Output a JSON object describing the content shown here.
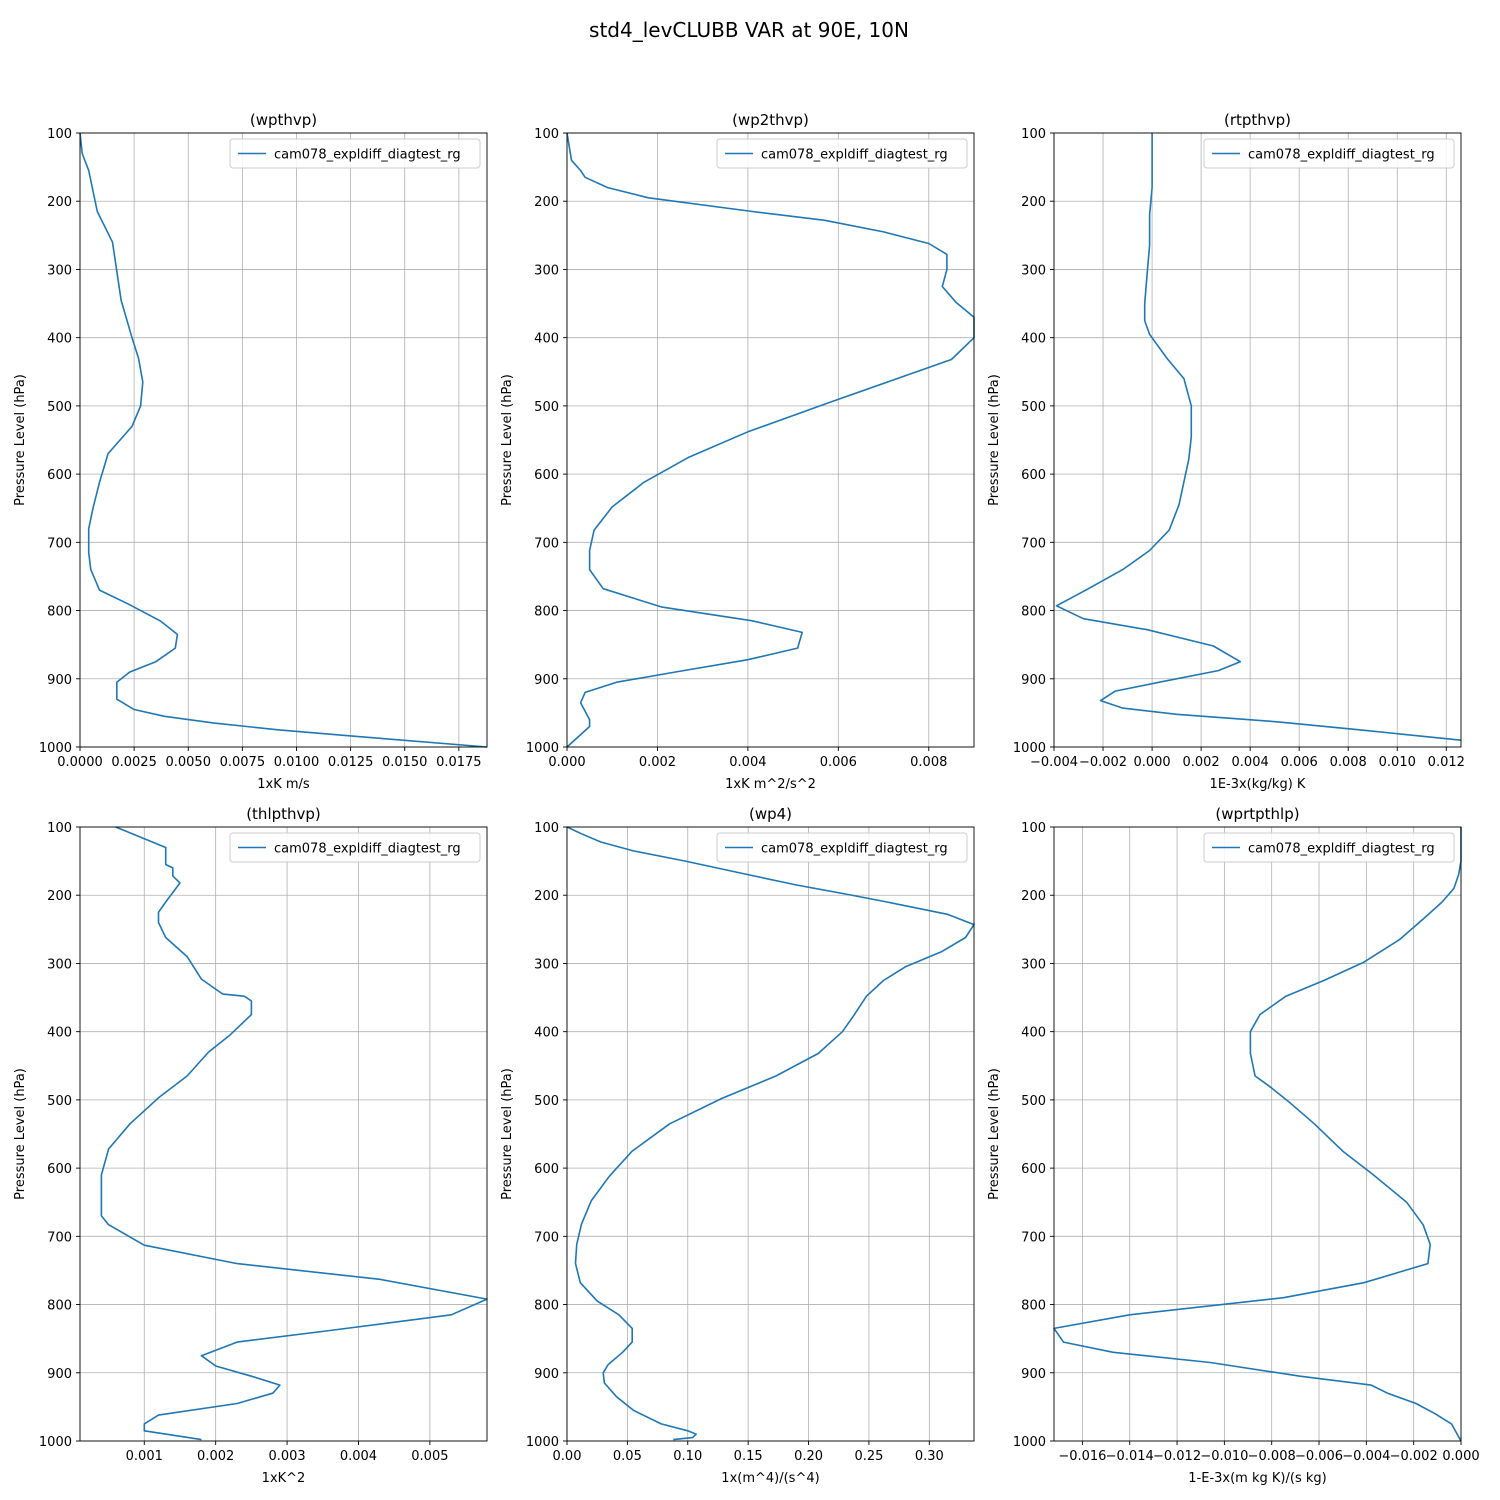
{
  "suptitle": "std4_levCLUBB VAR at 90E, 10N",
  "colors": {
    "line": "#1f77b4",
    "grid": "#b0b0b0",
    "axis": "#000000",
    "legend_border": "#cccccc"
  },
  "chart_data": [
    {
      "type": "line",
      "title": "(wpthvp)",
      "xlabel": "1xK m/s",
      "ylabel": "Pressure Level (hPa)",
      "xlim": [
        0,
        0.0188
      ],
      "ylim": [
        1000,
        100
      ],
      "xticks": [
        0,
        0.0025,
        0.005,
        0.0075,
        0.01,
        0.0125,
        0.015,
        0.0175
      ],
      "xtick_labels": [
        "0.0000",
        "0.0025",
        "0.0050",
        "0.0075",
        "0.0100",
        "0.0125",
        "0.0150",
        "0.0175"
      ],
      "yticks": [
        100,
        200,
        300,
        400,
        500,
        600,
        700,
        800,
        900,
        1000
      ],
      "ytick_labels": [
        "100",
        "200",
        "300",
        "400",
        "500",
        "600",
        "700",
        "800",
        "900",
        "1000"
      ],
      "grid": true,
      "legend_position": "upper right",
      "series": [
        {
          "name": "cam078_expldiff_diagtest_rg",
          "x": [
            0,
            0.0001,
            0.0004,
            0.0006,
            0.0008,
            0.0015,
            0.0019,
            0.0024,
            0.0027,
            0.0029,
            0.0028,
            0.0024,
            0.0013,
            0.0009,
            0.0006,
            0.0004,
            0.0004,
            0.0005,
            0.0009,
            0.0022,
            0.0037,
            0.0045,
            0.0044,
            0.0035,
            0.0023,
            0.0017,
            0.0017,
            0.0025,
            0.0039,
            0.0062,
            0.0092,
            0.013,
            0.0188
          ],
          "y": [
            100,
            130,
            155,
            185,
            215,
            260,
            345,
            400,
            430,
            465,
            500,
            530,
            570,
            612,
            650,
            680,
            715,
            740,
            770,
            790,
            815,
            835,
            855,
            875,
            890,
            905,
            930,
            945,
            955,
            965,
            975,
            985,
            1000
          ]
        }
      ]
    },
    {
      "type": "line",
      "title": "(wp2thvp)",
      "xlabel": "1xK m^2/s^2",
      "ylabel": "Pressure Level (hPa)",
      "xlim": [
        0,
        0.009
      ],
      "ylim": [
        1000,
        100
      ],
      "xticks": [
        0,
        0.002,
        0.004,
        0.006,
        0.008
      ],
      "xtick_labels": [
        "0.000",
        "0.002",
        "0.004",
        "0.006",
        "0.008"
      ],
      "yticks": [
        100,
        200,
        300,
        400,
        500,
        600,
        700,
        800,
        900,
        1000
      ],
      "ytick_labels": [
        "100",
        "200",
        "300",
        "400",
        "500",
        "600",
        "700",
        "800",
        "900",
        "1000"
      ],
      "grid": true,
      "legend_position": "upper right",
      "series": [
        {
          "name": "cam078_expldiff_diagtest_rg",
          "x": [
            0,
            0.0001,
            0.0003,
            0.0004,
            0.0009,
            0.0018,
            0.0041,
            0.0057,
            0.007,
            0.008,
            0.0084,
            0.0084,
            0.0083,
            0.0086,
            0.009,
            0.009,
            0.0085,
            0.0073,
            0.0058,
            0.004,
            0.0027,
            0.0017,
            0.001,
            0.0006,
            0.0005,
            0.0005,
            0.0008,
            0.0021,
            0.0041,
            0.0052,
            0.0051,
            0.004,
            0.0024,
            0.0011,
            0.0004,
            0.0003,
            0.0005,
            0.0005,
            0
          ],
          "y": [
            100,
            140,
            155,
            165,
            180,
            195,
            215,
            228,
            245,
            262,
            278,
            300,
            325,
            348,
            370,
            400,
            432,
            460,
            495,
            538,
            575,
            612,
            648,
            682,
            712,
            740,
            768,
            795,
            815,
            832,
            855,
            872,
            890,
            905,
            920,
            935,
            960,
            970,
            1000
          ]
        }
      ]
    },
    {
      "type": "line",
      "title": "(rtpthvp)",
      "xlabel": "1E-3x(kg/kg) K",
      "ylabel": "Pressure Level (hPa)",
      "xlim": [
        -0.004,
        0.0126
      ],
      "ylim": [
        1000,
        100
      ],
      "xticks": [
        -0.004,
        -0.002,
        0,
        0.002,
        0.004,
        0.006,
        0.008,
        0.01,
        0.012
      ],
      "xtick_labels": [
        "−0.004",
        "−0.002",
        "0.000",
        "0.002",
        "0.004",
        "0.006",
        "0.008",
        "0.010",
        "0.012"
      ],
      "yticks": [
        100,
        200,
        300,
        400,
        500,
        600,
        700,
        800,
        900,
        1000
      ],
      "ytick_labels": [
        "100",
        "200",
        "300",
        "400",
        "500",
        "600",
        "700",
        "800",
        "900",
        "1000"
      ],
      "grid": true,
      "legend_position": "upper right",
      "series": [
        {
          "name": "cam078_expldiff_diagtest_rg",
          "x": [
            0,
            0,
            -0.0001,
            -0.0001,
            -0.0002,
            -0.0003,
            -0.0003,
            -0.0001,
            0.0006,
            0.0013,
            0.0016,
            0.0016,
            0.0015,
            0.0011,
            0.0007,
            -0.0001,
            -0.0012,
            -0.0027,
            -0.0039,
            -0.0028,
            -0.0002,
            0.0025,
            0.0036,
            0.0027,
            0.0003,
            -0.0015,
            -0.0021,
            -0.0012,
            0.001,
            0.0051,
            0.0085,
            0.0126
          ],
          "y": [
            100,
            180,
            220,
            265,
            305,
            350,
            375,
            395,
            430,
            460,
            500,
            545,
            578,
            645,
            682,
            712,
            740,
            770,
            793,
            812,
            828,
            852,
            875,
            888,
            905,
            918,
            932,
            943,
            952,
            963,
            975,
            990
          ]
        }
      ]
    },
    {
      "type": "line",
      "title": "(thlpthvp)",
      "xlabel": "1xK^2",
      "ylabel": "Pressure Level (hPa)",
      "xlim": [
        0.0001,
        0.0058
      ],
      "ylim": [
        1000,
        100
      ],
      "xticks": [
        0.001,
        0.002,
        0.003,
        0.004,
        0.005
      ],
      "xtick_labels": [
        "0.001",
        "0.002",
        "0.003",
        "0.004",
        "0.005"
      ],
      "yticks": [
        100,
        200,
        300,
        400,
        500,
        600,
        700,
        800,
        900,
        1000
      ],
      "ytick_labels": [
        "100",
        "200",
        "300",
        "400",
        "500",
        "600",
        "700",
        "800",
        "900",
        "1000"
      ],
      "grid": true,
      "legend_position": "upper right",
      "series": [
        {
          "name": "cam078_expldiff_diagtest_rg",
          "x": [
            0.0006,
            0.0013,
            0.0013,
            0.0014,
            0.0014,
            0.0015,
            0.0013,
            0.0012,
            0.0012,
            0.0013,
            0.0016,
            0.0018,
            0.0021,
            0.0024,
            0.0025,
            0.0025,
            0.0022,
            0.0019,
            0.0016,
            0.0012,
            0.0008,
            0.0005,
            0.0004,
            0.0004,
            0.0004,
            0.0005,
            0.001,
            0.0023,
            0.0043,
            0.0058,
            0.0053,
            0.0036,
            0.0023,
            0.0018,
            0.002,
            0.0025,
            0.0029,
            0.0028,
            0.0023,
            0.0012,
            0.001,
            0.001,
            0.0018
          ],
          "y": [
            100,
            130,
            155,
            160,
            172,
            182,
            210,
            225,
            240,
            262,
            290,
            323,
            345,
            348,
            355,
            375,
            405,
            430,
            465,
            497,
            535,
            572,
            610,
            647,
            670,
            683,
            713,
            740,
            763,
            792,
            815,
            838,
            855,
            875,
            890,
            905,
            918,
            930,
            945,
            962,
            975,
            985,
            998
          ]
        }
      ]
    },
    {
      "type": "line",
      "title": "(wp4)",
      "xlabel": "1x(m^4)/(s^4)",
      "ylabel": "Pressure Level (hPa)",
      "xlim": [
        0,
        0.337
      ],
      "ylim": [
        1000,
        100
      ],
      "xticks": [
        0,
        0.05,
        0.1,
        0.15,
        0.2,
        0.25,
        0.3
      ],
      "xtick_labels": [
        "0.00",
        "0.05",
        "0.10",
        "0.15",
        "0.20",
        "0.25",
        "0.30"
      ],
      "yticks": [
        100,
        200,
        300,
        400,
        500,
        600,
        700,
        800,
        900,
        1000
      ],
      "ytick_labels": [
        "100",
        "200",
        "300",
        "400",
        "500",
        "600",
        "700",
        "800",
        "900",
        "1000"
      ],
      "grid": true,
      "legend_position": "upper right",
      "series": [
        {
          "name": "cam078_expldiff_diagtest_rg",
          "x": [
            0,
            0.012,
            0.028,
            0.055,
            0.098,
            0.145,
            0.19,
            0.23,
            0.265,
            0.315,
            0.337,
            0.33,
            0.31,
            0.28,
            0.262,
            0.248,
            0.238,
            0.228,
            0.208,
            0.173,
            0.128,
            0.085,
            0.054,
            0.035,
            0.02,
            0.012,
            0.008,
            0.007,
            0.011,
            0.025,
            0.043,
            0.054,
            0.054,
            0.046,
            0.034,
            0.03,
            0.031,
            0.041,
            0.055,
            0.078,
            0.1,
            0.107,
            0.104,
            0.088
          ],
          "y": [
            100,
            110,
            122,
            135,
            150,
            168,
            185,
            198,
            210,
            228,
            243,
            262,
            283,
            305,
            325,
            348,
            375,
            400,
            432,
            465,
            498,
            535,
            575,
            612,
            648,
            682,
            712,
            740,
            768,
            795,
            815,
            835,
            855,
            870,
            888,
            900,
            915,
            935,
            955,
            975,
            985,
            990,
            995,
            998
          ]
        }
      ]
    },
    {
      "type": "line",
      "title": "(wprtpthlp)",
      "xlabel": "1-E-3x(m kg K)/(s kg)",
      "ylabel": "Pressure Level (hPa)",
      "xlim": [
        -0.0172,
        0
      ],
      "ylim": [
        1000,
        100
      ],
      "xticks": [
        -0.016,
        -0.014,
        -0.012,
        -0.01,
        -0.008,
        -0.006,
        -0.004,
        -0.002,
        0
      ],
      "xtick_labels": [
        "−0.016",
        "−0.014",
        "−0.012",
        "−0.010",
        "−0.008",
        "−0.006",
        "−0.004",
        "−0.002",
        "0.000"
      ],
      "yticks": [
        100,
        200,
        300,
        400,
        500,
        600,
        700,
        800,
        900,
        1000
      ],
      "ytick_labels": [
        "100",
        "200",
        "300",
        "400",
        "500",
        "600",
        "700",
        "800",
        "900",
        "1000"
      ],
      "grid": true,
      "legend_position": "upper right",
      "series": [
        {
          "name": "cam078_expldiff_diagtest_rg",
          "x": [
            0,
            0,
            -0.0001,
            -0.0003,
            -0.0008,
            -0.0016,
            -0.0026,
            -0.0041,
            -0.0058,
            -0.0074,
            -0.0085,
            -0.0089,
            -0.0089,
            -0.0087,
            -0.0081,
            -0.0072,
            -0.0062,
            -0.005,
            -0.0037,
            -0.0023,
            -0.0016,
            -0.0013,
            -0.0014,
            -0.0041,
            -0.0075,
            -0.014,
            -0.0172,
            -0.0168,
            -0.0147,
            -0.0106,
            -0.0068,
            -0.0038,
            -0.0031,
            -0.0019,
            -0.0011,
            -0.0004,
            0
          ],
          "y": [
            100,
            150,
            170,
            190,
            210,
            235,
            265,
            298,
            325,
            348,
            375,
            400,
            432,
            465,
            480,
            505,
            535,
            575,
            610,
            650,
            683,
            712,
            740,
            768,
            790,
            815,
            835,
            855,
            870,
            885,
            905,
            918,
            930,
            945,
            960,
            975,
            1000
          ]
        }
      ]
    }
  ]
}
